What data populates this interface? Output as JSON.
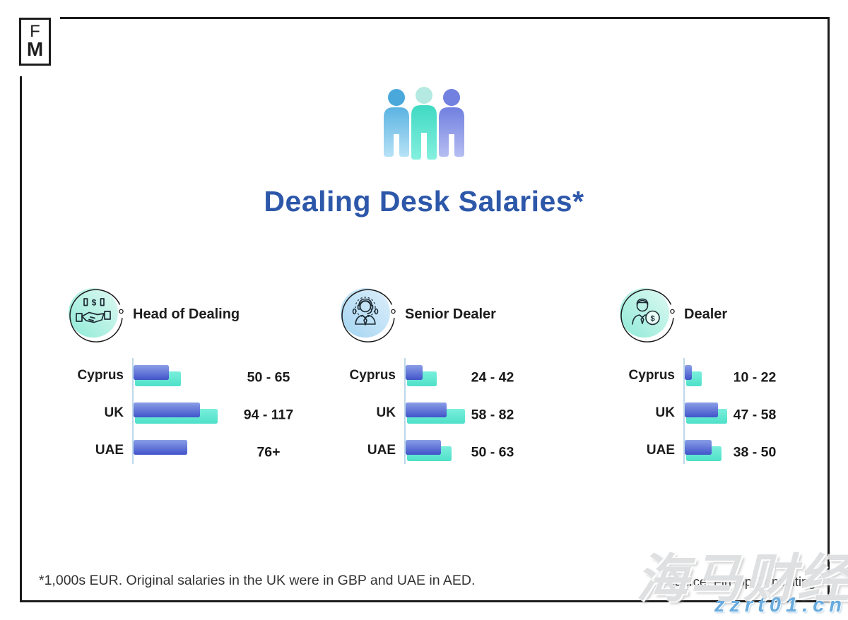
{
  "brand": {
    "logo_top": "F",
    "logo_bottom": "M"
  },
  "header": {
    "title": "Dealing Desk Salaries*"
  },
  "icons": {
    "people": "people-group-icon",
    "section1": "handshake-money-icon",
    "section2": "dealer-headset-icon",
    "section3": "dealer-coin-icon"
  },
  "colors": {
    "title_blue": "#2d57a9",
    "bar_low_top": "#8a9ee7",
    "bar_low_bottom": "#4154ca",
    "bar_high_top": "#79efdc",
    "bar_high_bottom": "#4fe0c9",
    "axis": "#bdd8ea",
    "frame": "#1c1c1c",
    "watermark_blue": "#68abdf"
  },
  "sections": [
    {
      "title": "Head of Dealing",
      "rows": [
        {
          "country": "Cyprus",
          "range": "50 - 65",
          "low": 50,
          "high": 65
        },
        {
          "country": "UK",
          "range": "94 - 117",
          "low": 94,
          "high": 117
        },
        {
          "country": "UAE",
          "range": "76+",
          "low": 76,
          "high": null
        }
      ]
    },
    {
      "title": "Senior Dealer",
      "rows": [
        {
          "country": "Cyprus",
          "range": "24 - 42",
          "low": 24,
          "high": 42
        },
        {
          "country": "UK",
          "range": "58 - 82",
          "low": 58,
          "high": 82
        },
        {
          "country": "UAE",
          "range": "50 - 63",
          "low": 50,
          "high": 63
        }
      ]
    },
    {
      "title": "Dealer",
      "rows": [
        {
          "country": "Cyprus",
          "range": "10 - 22",
          "low": 10,
          "high": 22
        },
        {
          "country": "UK",
          "range": "47 - 58",
          "low": 47,
          "high": 58
        },
        {
          "country": "UAE",
          "range": "38 - 50",
          "low": 38,
          "high": 50
        }
      ]
    }
  ],
  "footer": {
    "note": "*1,000s EUR. Original salaries in the UK were in GBP and UAE in AED.",
    "source": "Source: FinTop Consulting"
  },
  "watermark": {
    "line1": "海马财经",
    "line2": "zzrt01.cn"
  },
  "chart_data": [
    {
      "type": "bar",
      "orientation": "horizontal",
      "title": "Head of Dealing",
      "units": "1,000s EUR",
      "categories": [
        "Cyprus",
        "UK",
        "UAE"
      ],
      "series": [
        {
          "name": "range_low",
          "values": [
            50,
            94,
            76
          ]
        },
        {
          "name": "range_high",
          "values": [
            65,
            117,
            null
          ]
        }
      ],
      "value_labels": [
        "50 - 65",
        "94 - 117",
        "76+"
      ],
      "grid": false,
      "legend": false
    },
    {
      "type": "bar",
      "orientation": "horizontal",
      "title": "Senior Dealer",
      "units": "1,000s EUR",
      "categories": [
        "Cyprus",
        "UK",
        "UAE"
      ],
      "series": [
        {
          "name": "range_low",
          "values": [
            24,
            58,
            50
          ]
        },
        {
          "name": "range_high",
          "values": [
            42,
            82,
            63
          ]
        }
      ],
      "value_labels": [
        "24 - 42",
        "58 - 82",
        "50 - 63"
      ],
      "grid": false,
      "legend": false
    },
    {
      "type": "bar",
      "orientation": "horizontal",
      "title": "Dealer",
      "units": "1,000s EUR",
      "categories": [
        "Cyprus",
        "UK",
        "UAE"
      ],
      "series": [
        {
          "name": "range_low",
          "values": [
            10,
            47,
            38
          ]
        },
        {
          "name": "range_high",
          "values": [
            22,
            58,
            50
          ]
        }
      ],
      "value_labels": [
        "10 - 22",
        "47 - 58",
        "38 - 50"
      ],
      "grid": false,
      "legend": false
    }
  ]
}
